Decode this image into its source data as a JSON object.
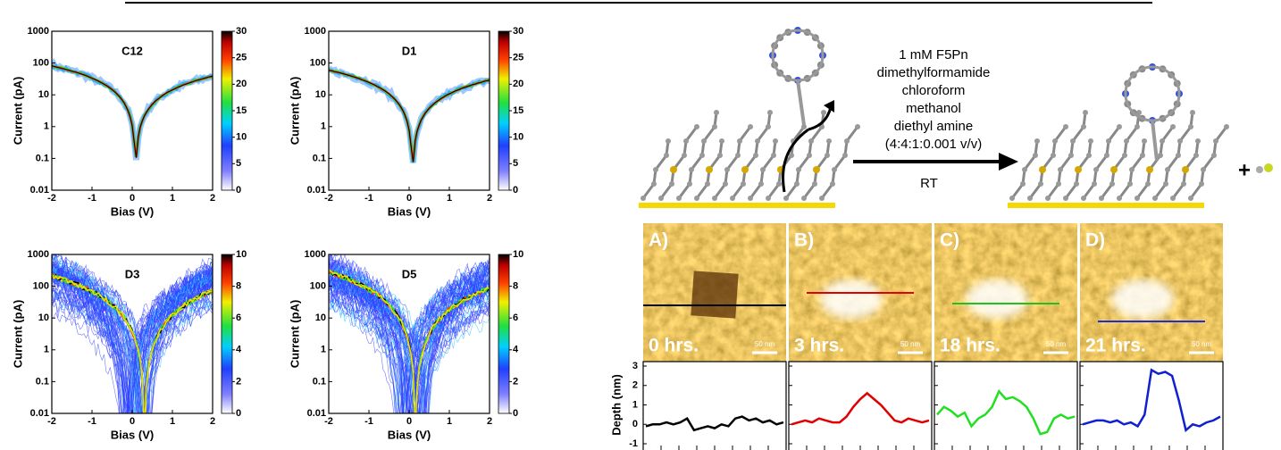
{
  "plot_axes": {
    "x_label": "Bias (V)",
    "y_label": "Current (pA)",
    "xticks": [
      -2,
      -1,
      0,
      1,
      2
    ],
    "yticks": [
      1000,
      100,
      10,
      1,
      0.1,
      0.01
    ]
  },
  "plots": [
    {
      "label": "C12",
      "cbar_ticks": [
        0,
        5,
        10,
        15,
        20,
        25,
        30
      ]
    },
    {
      "label": "D1",
      "cbar_ticks": [
        0,
        5,
        10,
        15,
        20,
        25,
        30
      ]
    },
    {
      "label": "D3",
      "cbar_ticks": [
        0,
        2,
        4,
        6,
        8,
        10
      ]
    },
    {
      "label": "D5",
      "cbar_ticks": [
        0,
        2,
        4,
        6,
        8,
        10
      ]
    }
  ],
  "scheme": {
    "conditions": [
      "1 mM F5Pn",
      "dimethylformamide",
      "chloroform",
      "methanol",
      "diethyl amine",
      "(4:4:1:0.001  v/v)"
    ],
    "temperature": "RT",
    "plus": "+"
  },
  "afm": [
    {
      "letter": "A)",
      "time": "0 hrs.",
      "scale": "50 nm",
      "line_color": "#000000"
    },
    {
      "letter": "B)",
      "time": "3 hrs.",
      "scale": "50 nm",
      "line_color": "#e00000"
    },
    {
      "letter": "C)",
      "time": "18 hrs.",
      "scale": "50 nm",
      "line_color": "#20c020"
    },
    {
      "letter": "D)",
      "time": "21 hrs.",
      "scale": "50 nm",
      "line_color": "#2030d0"
    }
  ],
  "depth": {
    "y_label": "Depth (nm)",
    "ylim": [
      -1,
      3
    ],
    "yticks": [
      3,
      2,
      1,
      0,
      -1
    ],
    "profiles": [
      {
        "color": "#000000",
        "values": [
          -0.1,
          0,
          0,
          0.1,
          0,
          0.1,
          0.3,
          -0.3,
          -0.2,
          -0.1,
          -0.2,
          0,
          -0.1,
          0.3,
          0.4,
          0.2,
          0.3,
          0.1,
          0.2,
          0,
          0.1
        ]
      },
      {
        "color": "#e00000",
        "values": [
          0,
          0.1,
          0.2,
          0.1,
          0.3,
          0.2,
          0.1,
          0.1,
          0.4,
          0.9,
          1.3,
          1.6,
          1.3,
          1,
          0.6,
          0.2,
          0.1,
          0.3,
          0.2,
          0.1,
          0.2
        ]
      },
      {
        "color": "#20e020",
        "values": [
          0.5,
          0.9,
          0.7,
          0.4,
          0.6,
          -0.1,
          0.3,
          0.5,
          0.9,
          1.7,
          1.3,
          1.4,
          1.2,
          0.9,
          0.3,
          -0.5,
          -0.4,
          0.3,
          0.5,
          0.3,
          0.4
        ]
      },
      {
        "color": "#1020d0",
        "values": [
          0,
          0.1,
          0.2,
          0.2,
          0.1,
          0.2,
          0,
          0.1,
          -0.1,
          0.5,
          2.8,
          2.6,
          2.7,
          2.5,
          1.2,
          -0.3,
          0,
          -0.1,
          0.1,
          0.2,
          0.4
        ]
      }
    ]
  }
}
